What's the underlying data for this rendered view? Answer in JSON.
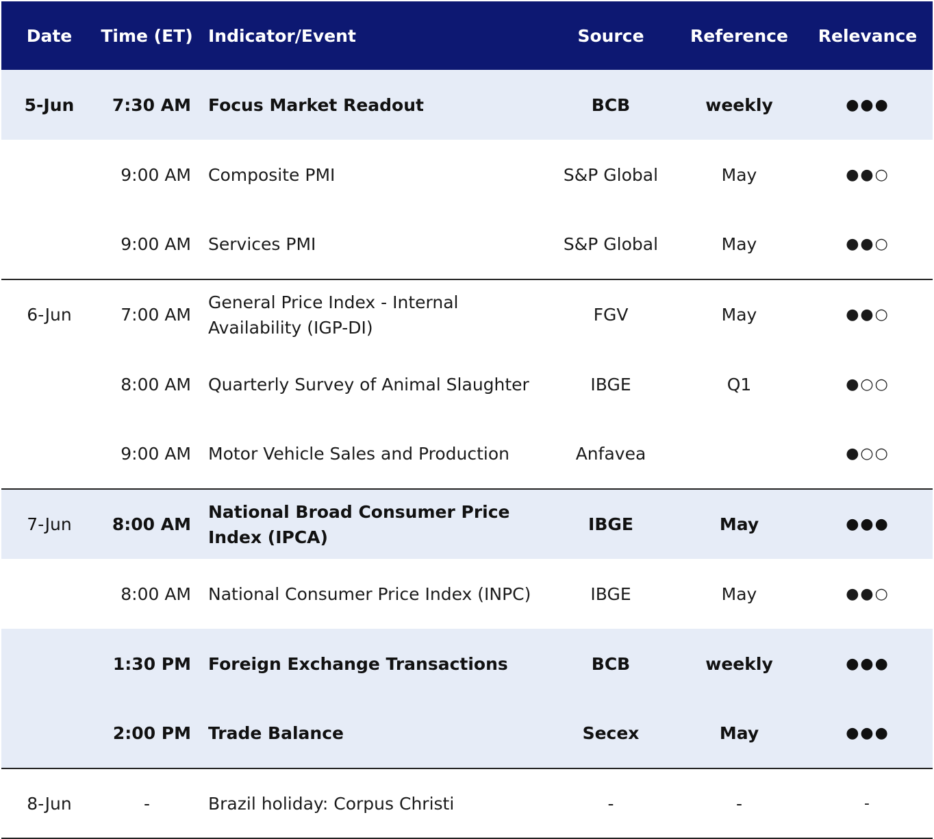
{
  "header": {
    "date": "Date",
    "time": "Time (ET)",
    "indicator": "Indicator/Event",
    "source": "Source",
    "reference": "Reference",
    "relevance": "Relevance"
  },
  "rows": [
    {
      "date": "5-Jun",
      "time": "7:30 AM",
      "indicator": "Focus Market Readout",
      "source": "BCB",
      "reference": "weekly",
      "relevance": "●●●"
    },
    {
      "date": "",
      "time": "9:00 AM",
      "indicator": "Composite PMI",
      "source": "S&P Global",
      "reference": "May",
      "relevance": "●●○"
    },
    {
      "date": "",
      "time": "9:00 AM",
      "indicator": "Services PMI",
      "source": "S&P Global",
      "reference": "May",
      "relevance": "●●○"
    },
    {
      "date": "6-Jun",
      "time": "7:00 AM",
      "indicator": "General Price Index - Internal Availability (IGP-DI)",
      "source": "FGV",
      "reference": "May",
      "relevance": "●●○"
    },
    {
      "date": "",
      "time": "8:00 AM",
      "indicator": "Quarterly Survey of Animal Slaughter",
      "source": "IBGE",
      "reference": "Q1",
      "relevance": "●○○"
    },
    {
      "date": "",
      "time": "9:00 AM",
      "indicator": "Motor Vehicle Sales and Production",
      "source": "Anfavea",
      "reference": "",
      "relevance": "●○○"
    },
    {
      "date": "7-Jun",
      "time": "8:00 AM",
      "indicator": "National Broad Consumer Price Index (IPCA)",
      "source": "IBGE",
      "reference": "May",
      "relevance": "●●●"
    },
    {
      "date": "",
      "time": "8:00 AM",
      "indicator": "National Consumer Price Index (INPC)",
      "source": "IBGE",
      "reference": "May",
      "relevance": "●●○"
    },
    {
      "date": "",
      "time": "1:30 PM",
      "indicator": "Foreign Exchange Transactions",
      "source": "BCB",
      "reference": "weekly",
      "relevance": "●●●"
    },
    {
      "date": "",
      "time": "2:00 PM",
      "indicator": "Trade Balance",
      "source": "Secex",
      "reference": "May",
      "relevance": "●●●"
    },
    {
      "date": "8-Jun",
      "time": "-",
      "indicator": "Brazil holiday: Corpus Christi",
      "source": "-",
      "reference": "-",
      "relevance": "-"
    }
  ]
}
